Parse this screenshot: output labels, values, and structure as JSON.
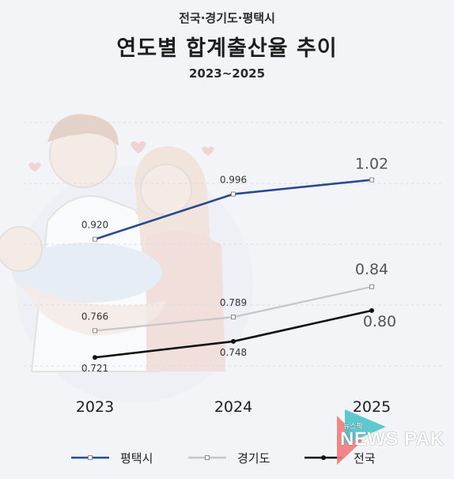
{
  "header": {
    "supertitle": "전국·경기도·평택시",
    "title": "연도별 합계출산율 추이",
    "subtitle": "2023~2025"
  },
  "chart_data": {
    "type": "line",
    "categories": [
      "2023",
      "2024",
      "2025"
    ],
    "ylim": [
      0.7,
      1.05
    ],
    "grid": true,
    "legend_placement": "bottom",
    "series": [
      {
        "name": "평택시",
        "values": [
          0.92,
          0.996,
          1.02
        ],
        "labels": [
          "0.920",
          "0.996",
          "1.02"
        ],
        "color": "#2a4a8c"
      },
      {
        "name": "경기도",
        "values": [
          0.766,
          0.789,
          0.84
        ],
        "labels": [
          "0.766",
          "0.789",
          "0.84"
        ],
        "color": "#c6c6c6"
      },
      {
        "name": "전국",
        "values": [
          0.721,
          0.748,
          0.8
        ],
        "labels": [
          "0.721",
          "0.748",
          "0.80"
        ],
        "color": "#111111"
      }
    ]
  },
  "logo": {
    "small_text": "뉴스팍",
    "text": "NEWS PAK",
    "colors": [
      "#f07a7a",
      "#4fc3c9"
    ]
  }
}
